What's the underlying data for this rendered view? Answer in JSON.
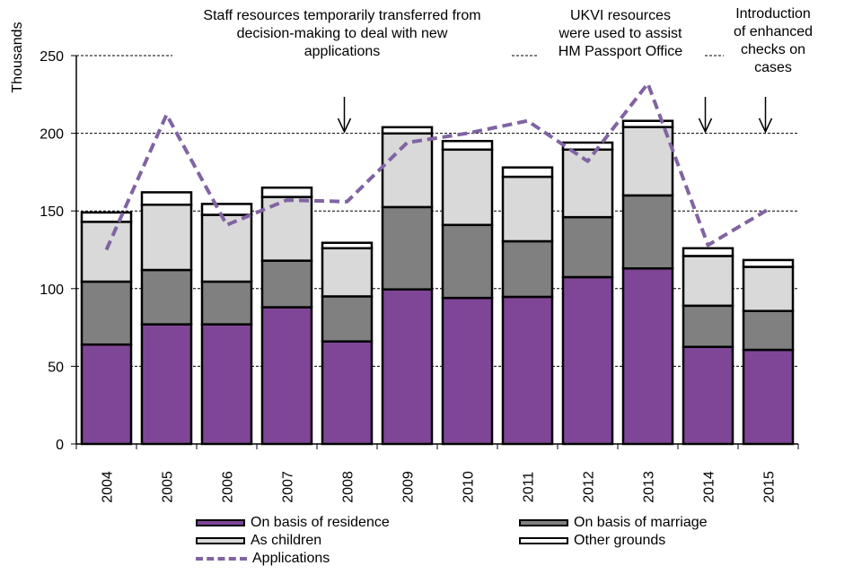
{
  "chart_data": {
    "type": "bar",
    "stacked": true,
    "title": "",
    "xlabel": "",
    "ylabel": "Thousands",
    "ylim": [
      0,
      250
    ],
    "yticks": [
      0,
      50,
      100,
      150,
      200,
      250
    ],
    "grid": true,
    "categories": [
      "2004",
      "2005",
      "2006",
      "2007",
      "2008",
      "2009",
      "2010",
      "2011",
      "2012",
      "2013",
      "2014",
      "2015"
    ],
    "series": [
      {
        "name": "On basis of residence",
        "type": "bar",
        "color": "#7f4697",
        "values": [
          64,
          77,
          77,
          88,
          66,
          99.5,
          94,
          94.7,
          107.4,
          113,
          62.5,
          60.6
        ]
      },
      {
        "name": "On basis of marriage",
        "type": "bar",
        "color": "#808080",
        "values": [
          40.5,
          35,
          27.5,
          30,
          29,
          53,
          47,
          35.8,
          38.6,
          47,
          26.5,
          25
        ]
      },
      {
        "name": "As children",
        "type": "bar",
        "color": "#d9d9d9",
        "values": [
          38.5,
          42,
          43,
          41,
          31,
          47.4,
          48.5,
          41.5,
          43.5,
          44,
          32,
          28.4
        ]
      },
      {
        "name": "Other grounds",
        "type": "bar",
        "color": "#ffffff",
        "values": [
          6,
          8,
          7,
          6,
          3.5,
          4,
          5.5,
          6,
          4.5,
          4,
          5,
          4.4
        ]
      },
      {
        "name": "Applications",
        "type": "line",
        "color": "#8064a2",
        "dashed": true,
        "values": [
          125,
          212,
          141,
          157,
          156,
          194,
          200,
          208,
          182,
          232,
          128,
          151
        ]
      }
    ],
    "annotations": [
      {
        "text": "Staff resources temporarily transferred from\ndecision-making to deal with new\napplications",
        "arrow_category": "2008"
      },
      {
        "text": "UKVI resources\nwere used to assist\nHM Passport Office",
        "arrow_category": "2014"
      },
      {
        "text": "Introduction\nof enhanced\nchecks on\ncases",
        "arrow_category": "2015"
      }
    ],
    "legend": {
      "placement": "bottom",
      "entries": [
        "On basis of residence",
        "On basis of marriage",
        "As children",
        "Other grounds",
        "Applications"
      ]
    }
  }
}
